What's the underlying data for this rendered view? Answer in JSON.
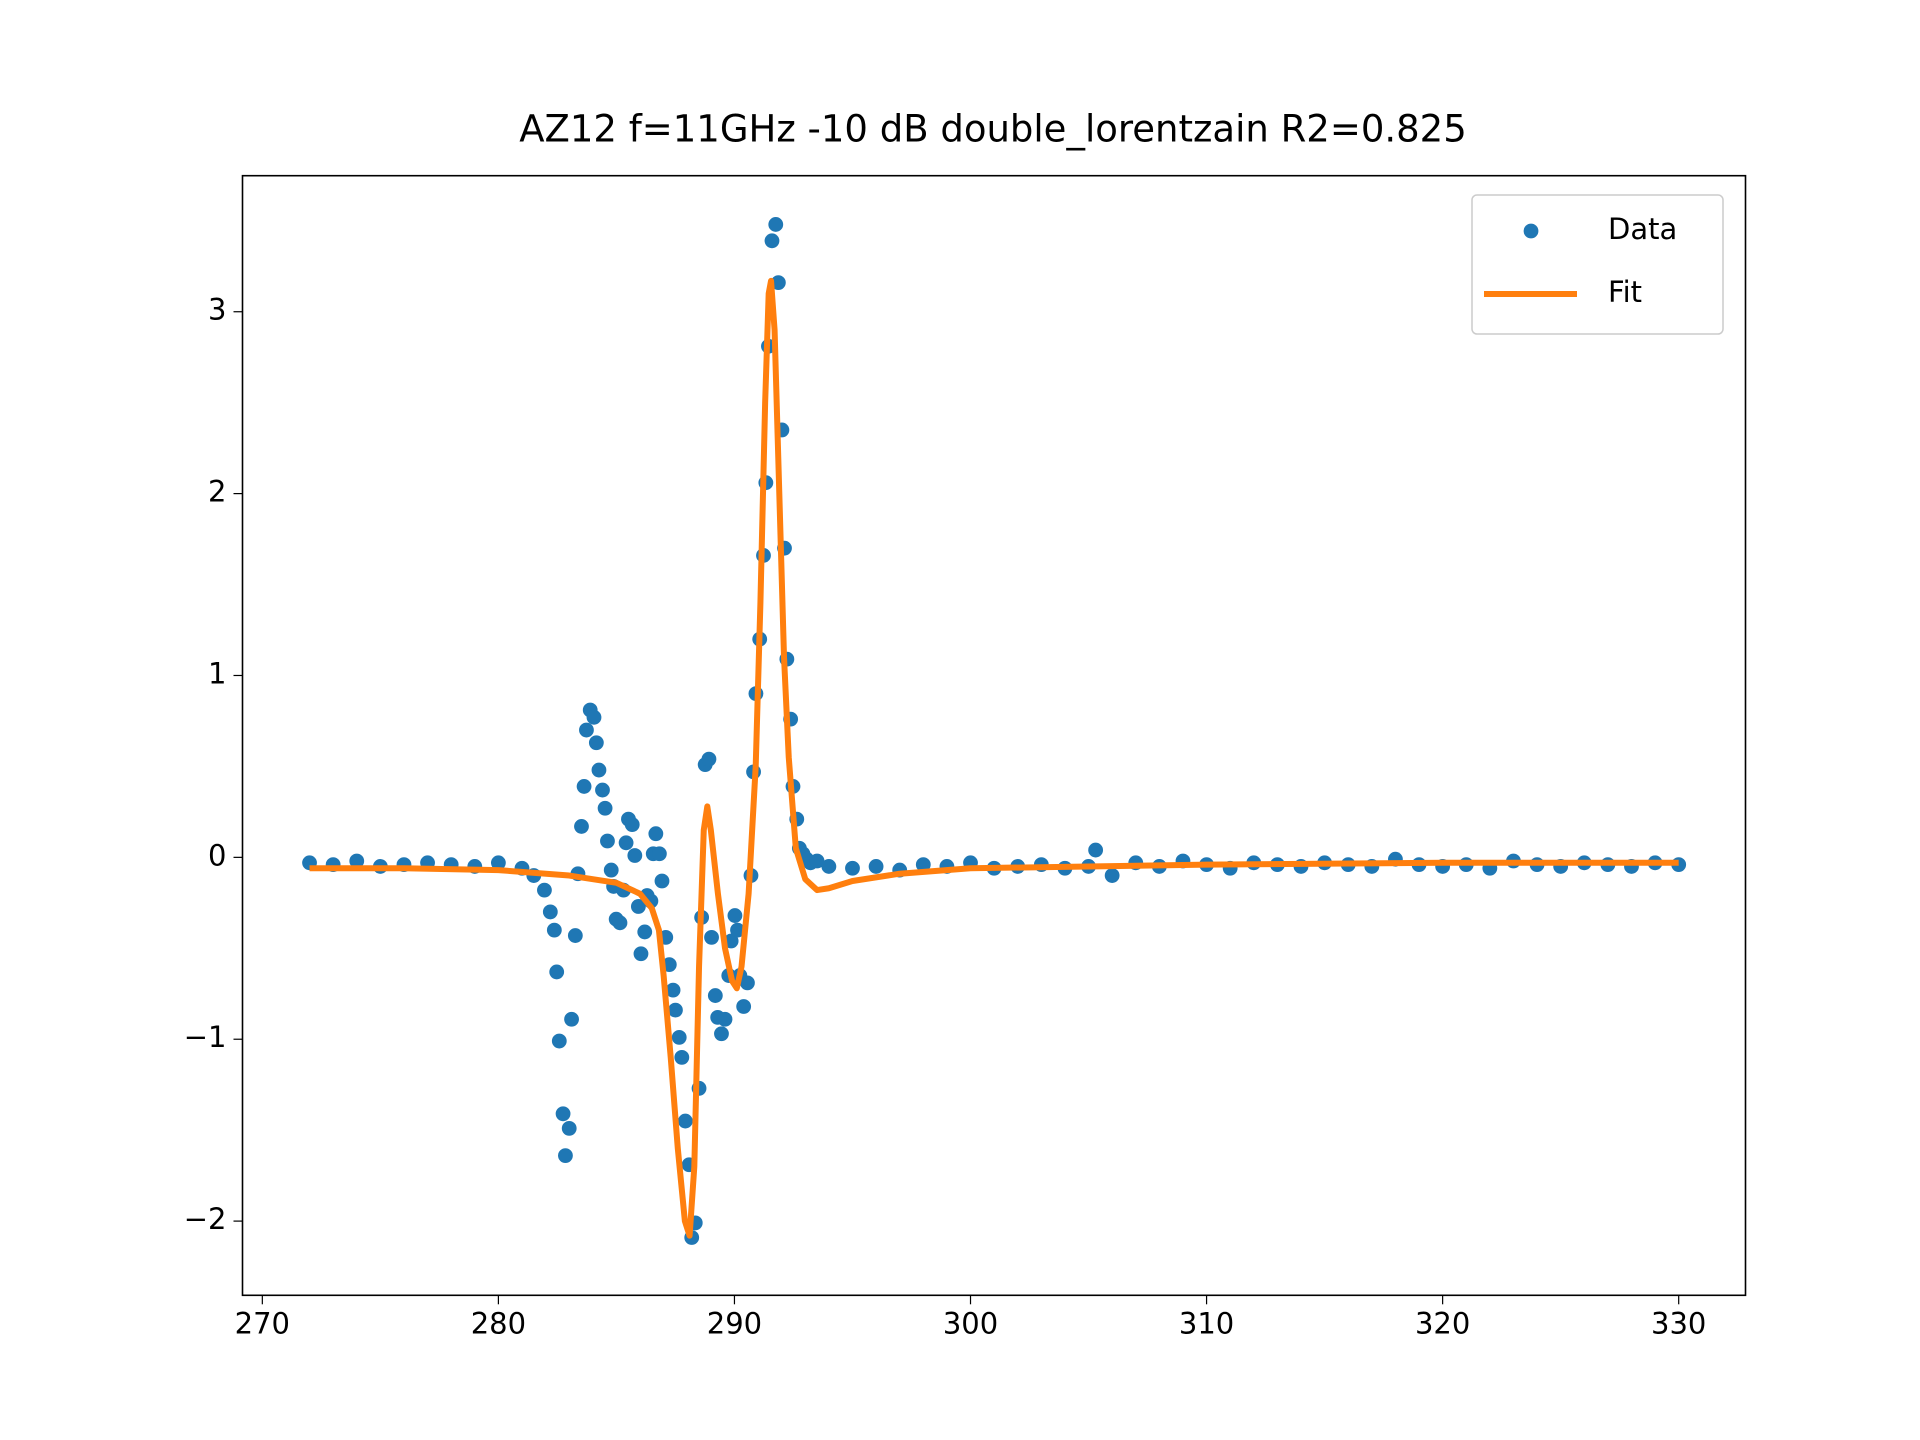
{
  "chart_data": {
    "type": "scatter",
    "title": "AZ12 f=11GHz -10 dB double_lorentzain R2=0.825",
    "xlim": [
      269.16,
      332.83
    ],
    "ylim": [
      -2.408,
      3.748
    ],
    "xticks": [
      270,
      280,
      290,
      300,
      310,
      320,
      330
    ],
    "yticks": [
      {
        "value": -2,
        "label": "−2"
      },
      {
        "value": -1,
        "label": "−1"
      },
      0,
      1,
      2,
      3
    ],
    "legend": "upper right",
    "series": [
      {
        "name": "Data",
        "type": "scatter",
        "color": "#1f77b4",
        "x": [
          272,
          273,
          274,
          275,
          276,
          277,
          278,
          279,
          280,
          281,
          281.5,
          281.95,
          282.2,
          282.37,
          282.47,
          282.58,
          282.74,
          282.84,
          283.0,
          283.1,
          283.26,
          283.37,
          283.52,
          283.63,
          283.73,
          283.89,
          284.05,
          284.15,
          284.26,
          284.41,
          284.52,
          284.62,
          284.78,
          284.88,
          284.99,
          285.15,
          285.3,
          285.41,
          285.51,
          285.67,
          285.78,
          285.93,
          286.04,
          286.2,
          286.3,
          286.46,
          286.56,
          286.67,
          286.82,
          286.93,
          287.09,
          287.24,
          287.4,
          287.5,
          287.66,
          287.77,
          287.92,
          288.08,
          288.19,
          288.34,
          288.5,
          288.61,
          288.76,
          288.92,
          289.03,
          289.19,
          289.29,
          289.45,
          289.6,
          289.76,
          289.86,
          290.02,
          290.13,
          290.23,
          290.39,
          290.55,
          290.7,
          290.81,
          290.91,
          291.07,
          291.23,
          291.33,
          291.44,
          291.59,
          291.75,
          291.86,
          292.01,
          292.12,
          292.22,
          292.38,
          292.48,
          292.64,
          292.75,
          292.9,
          293.06,
          293.22,
          293.5,
          294,
          295,
          296,
          297,
          298,
          299,
          300,
          301,
          302,
          303,
          304,
          305,
          305.3,
          306,
          307,
          308,
          309,
          310,
          311,
          312,
          313,
          314,
          315,
          316,
          317,
          318,
          319,
          320,
          321,
          322,
          323,
          324,
          325,
          326,
          327,
          328,
          329,
          330
        ],
        "values": [
          -0.03,
          -0.04,
          -0.02,
          -0.05,
          -0.04,
          -0.03,
          -0.04,
          -0.05,
          -0.03,
          -0.06,
          -0.1,
          -0.18,
          -0.3,
          -0.4,
          -0.63,
          -1.01,
          -1.41,
          -1.64,
          -1.49,
          -0.89,
          -0.43,
          -0.09,
          0.17,
          0.39,
          0.7,
          0.81,
          0.77,
          0.63,
          0.48,
          0.37,
          0.27,
          0.09,
          -0.07,
          -0.16,
          -0.34,
          -0.36,
          -0.18,
          0.08,
          0.21,
          0.18,
          0.01,
          -0.27,
          -0.53,
          -0.41,
          -0.21,
          -0.24,
          0.02,
          0.13,
          0.02,
          -0.13,
          -0.44,
          -0.59,
          -0.73,
          -0.84,
          -0.99,
          -1.1,
          -1.45,
          -1.69,
          -2.09,
          -2.01,
          -1.27,
          -0.33,
          0.51,
          0.54,
          -0.44,
          -0.76,
          -0.88,
          -0.97,
          -0.89,
          -0.65,
          -0.46,
          -0.32,
          -0.4,
          -0.65,
          -0.82,
          -0.69,
          -0.1,
          0.47,
          0.9,
          1.2,
          1.66,
          2.06,
          2.81,
          3.39,
          3.48,
          3.16,
          2.35,
          1.7,
          1.09,
          0.76,
          0.39,
          0.21,
          0.05,
          0.02,
          -0.01,
          -0.03,
          -0.02,
          -0.05,
          -0.06,
          -0.05,
          -0.07,
          -0.04,
          -0.05,
          -0.03,
          -0.06,
          -0.05,
          -0.04,
          -0.06,
          -0.05,
          0.04,
          -0.1,
          -0.03,
          -0.05,
          -0.02,
          -0.04,
          -0.06,
          -0.03,
          -0.04,
          -0.05,
          -0.03,
          -0.04,
          -0.05,
          -0.01,
          -0.04,
          -0.05,
          -0.04,
          -0.06,
          -0.02,
          -0.04,
          -0.05,
          -0.03,
          -0.04,
          -0.05,
          -0.03,
          -0.04
        ]
      },
      {
        "name": "Fit",
        "type": "line",
        "color": "#ff7f0e",
        "x": [
          272,
          276,
          280,
          283,
          285,
          286,
          286.5,
          286.8,
          287,
          287.3,
          287.6,
          287.9,
          288.1,
          288.3,
          288.5,
          288.7,
          288.85,
          289.0,
          289.3,
          289.6,
          289.9,
          290.1,
          290.3,
          290.6,
          290.9,
          291.1,
          291.3,
          291.45,
          291.55,
          291.7,
          291.9,
          292.1,
          292.3,
          292.6,
          293,
          293.5,
          294,
          295,
          297,
          300,
          310,
          320,
          330
        ],
        "values": [
          -0.06,
          -0.06,
          -0.07,
          -0.1,
          -0.14,
          -0.2,
          -0.28,
          -0.4,
          -0.65,
          -1.1,
          -1.6,
          -2.0,
          -2.08,
          -1.7,
          -0.6,
          0.15,
          0.28,
          0.15,
          -0.2,
          -0.5,
          -0.68,
          -0.72,
          -0.6,
          -0.2,
          0.5,
          1.4,
          2.5,
          3.1,
          3.17,
          2.9,
          2.0,
          1.1,
          0.55,
          0.05,
          -0.12,
          -0.18,
          -0.17,
          -0.13,
          -0.09,
          -0.06,
          -0.04,
          -0.03,
          -0.03
        ]
      }
    ]
  }
}
